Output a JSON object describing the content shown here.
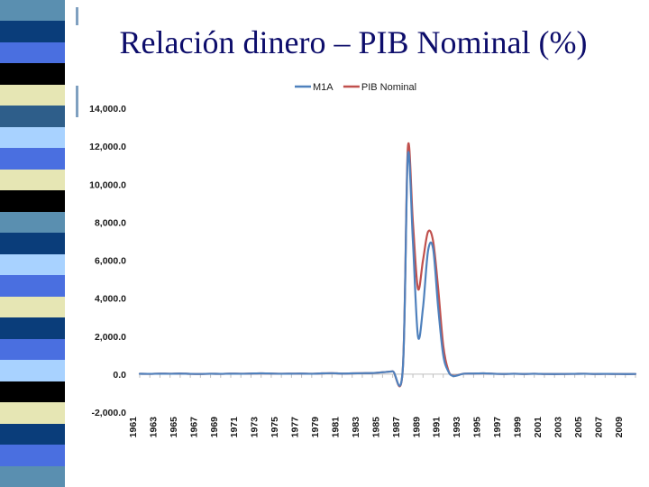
{
  "slide": {
    "title": "Relación dinero – PIB Nominal (%)"
  },
  "theme": {
    "strip_colors": [
      "#5a8fb0",
      "#0a3d7a",
      "#4a6fe0",
      "#000000",
      "#e6e6b4",
      "#2e5e8a",
      "#a8d2ff",
      "#4a6fe0",
      "#e6e6b4",
      "#000000",
      "#5a8fb0",
      "#0a3d7a",
      "#a8d2ff",
      "#4a6fe0",
      "#e6e6b4",
      "#0a3d7a",
      "#4a6fe0",
      "#a8d2ff",
      "#000000",
      "#e6e6b4",
      "#0a3d7a",
      "#4a6fe0",
      "#5a8fb0"
    ],
    "m1a_color": "#4f81bd",
    "pib_color": "#c0504d"
  },
  "chart_data": {
    "type": "line",
    "title": "",
    "xlabel": "",
    "ylabel": "",
    "ylim": [
      -2000,
      14000
    ],
    "y_ticks": [
      {
        "value": -2000,
        "label": "-2,000.0"
      },
      {
        "value": 0,
        "label": "0.0"
      },
      {
        "value": 2000,
        "label": "2,000.0"
      },
      {
        "value": 4000,
        "label": "4,000.0"
      },
      {
        "value": 6000,
        "label": "6,000.0"
      },
      {
        "value": 8000,
        "label": "8,000.0"
      },
      {
        "value": 10000,
        "label": "10,000.0"
      },
      {
        "value": 12000,
        "label": "12,000.0"
      },
      {
        "value": 14000,
        "label": "14,000.0"
      }
    ],
    "x_tick_labels": [
      "1961",
      "1963",
      "1965",
      "1967",
      "1969",
      "1971",
      "1973",
      "1975",
      "1977",
      "1979",
      "1981",
      "1983",
      "1985",
      "1987",
      "1989",
      "1991",
      "1993",
      "1995",
      "1997",
      "1999",
      "2001",
      "2003",
      "2005",
      "2007",
      "2009"
    ],
    "x": [
      1961,
      1962,
      1963,
      1964,
      1965,
      1966,
      1967,
      1968,
      1969,
      1970,
      1971,
      1972,
      1973,
      1974,
      1975,
      1976,
      1977,
      1978,
      1979,
      1980,
      1981,
      1982,
      1983,
      1984,
      1985,
      1986,
      1987,
      1987.5,
      1988,
      1988.5,
      1989,
      1989.5,
      1990,
      1990.5,
      1991,
      1991.5,
      1992,
      1993,
      1994,
      1995,
      1996,
      1997,
      1998,
      1999,
      2000,
      2001,
      2002,
      2003,
      2004,
      2005,
      2006,
      2007,
      2008,
      2009,
      2010
    ],
    "legend_position": "top",
    "series": [
      {
        "name": "M1A",
        "color": "#4f81bd",
        "values": [
          20,
          15,
          25,
          20,
          30,
          15,
          10,
          20,
          15,
          25,
          20,
          30,
          40,
          30,
          20,
          25,
          30,
          20,
          40,
          50,
          30,
          40,
          50,
          60,
          100,
          150,
          250,
          11500,
          7000,
          2000,
          3500,
          6500,
          6600,
          3500,
          1000,
          150,
          -100,
          20,
          30,
          40,
          20,
          10,
          20,
          10,
          20,
          10,
          5,
          10,
          15,
          20,
          10,
          15,
          10,
          5,
          10
        ]
      },
      {
        "name": "PIB Nominal",
        "color": "#c0504d",
        "values": [
          20,
          15,
          25,
          20,
          30,
          15,
          10,
          20,
          15,
          25,
          20,
          30,
          40,
          30,
          20,
          25,
          30,
          20,
          40,
          50,
          30,
          40,
          50,
          60,
          100,
          150,
          250,
          11900,
          8000,
          4500,
          6000,
          7500,
          7000,
          4500,
          1500,
          200,
          -80,
          20,
          30,
          40,
          20,
          10,
          20,
          10,
          20,
          10,
          5,
          10,
          15,
          20,
          10,
          15,
          10,
          5,
          10
        ]
      }
    ]
  }
}
